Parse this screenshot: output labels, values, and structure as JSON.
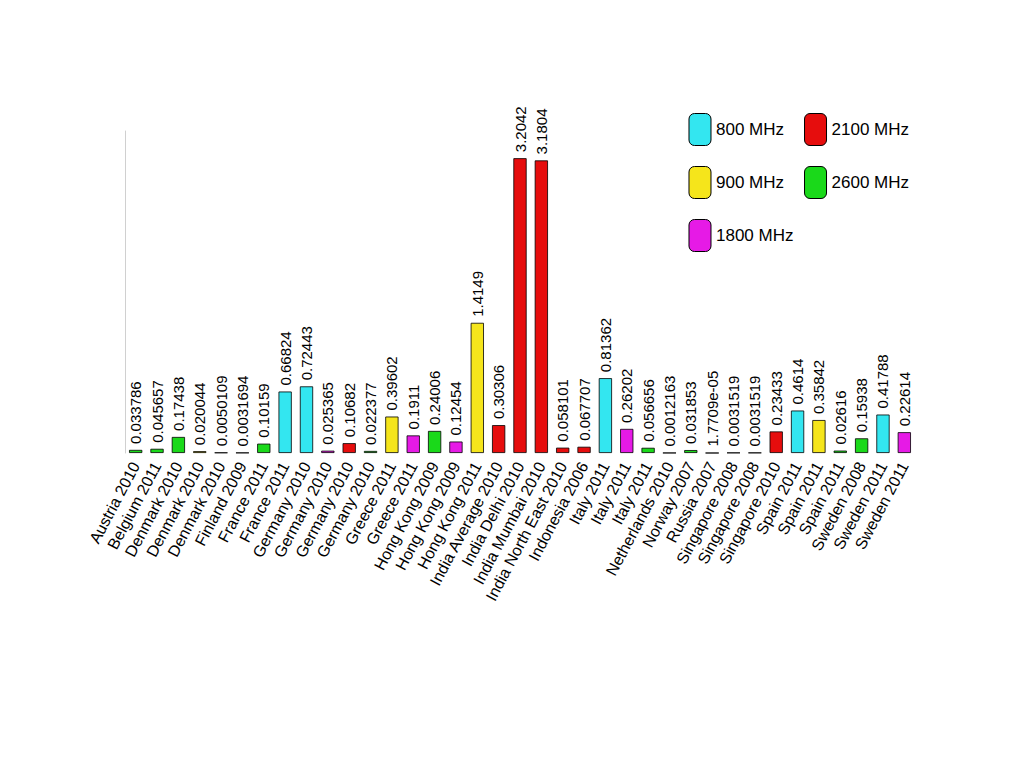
{
  "chart_data": {
    "type": "bar",
    "categories": [
      "Austria 2010",
      "Belgium 2011",
      "Denmark 2010",
      "Denmark 2010",
      "Denmark 2010",
      "Finland 2009",
      "France 2011",
      "France 2011",
      "Germany 2010",
      "Germany 2010",
      "Germany 2010",
      "Germany 2010",
      "Greece 2011",
      "Greece 2011",
      "Hong Kong 2009",
      "Hong Kong 2009",
      "Hong Kong 2011",
      "India Average 2010",
      "India Delhi 2010",
      "India Mumbai 2010",
      "India North East 2010",
      "Indonesia 2006",
      "Italy 2011",
      "Italy 2011",
      "Italy 2011",
      "Netherlands 2010",
      "Norway 2007",
      "Russia 2007",
      "Singapore 2008",
      "Singapore 2008",
      "Singapore 2010",
      "Spain 2011",
      "Spain 2011",
      "Spain 2011",
      "Sweden 2008",
      "Sweden 2011",
      "Sweden 2011"
    ],
    "series": [
      {
        "name": "800 MHz",
        "color": "#33e6f0",
        "values": [
          null,
          null,
          null,
          null,
          null,
          null,
          null,
          0.66824,
          0.72443,
          null,
          null,
          null,
          null,
          null,
          null,
          null,
          null,
          null,
          null,
          null,
          null,
          null,
          0.81362,
          null,
          null,
          null,
          null,
          null,
          null,
          null,
          null,
          0.4614,
          null,
          null,
          null,
          0.41788,
          null
        ]
      },
      {
        "name": "900 MHz",
        "color": "#f5e51b",
        "values": [
          null,
          null,
          null,
          0.020044,
          null,
          null,
          null,
          null,
          null,
          null,
          null,
          null,
          0.39602,
          null,
          null,
          null,
          1.4149,
          null,
          null,
          null,
          null,
          null,
          null,
          null,
          null,
          null,
          null,
          null,
          null,
          null,
          null,
          null,
          0.35842,
          null,
          null,
          null,
          null
        ]
      },
      {
        "name": "1800 MHz",
        "color": "#e61ae6",
        "values": [
          null,
          null,
          null,
          null,
          null,
          null,
          null,
          null,
          null,
          0.025365,
          null,
          null,
          null,
          0.1911,
          null,
          0.12454,
          null,
          null,
          null,
          null,
          null,
          null,
          null,
          0.26202,
          null,
          null,
          null,
          null,
          null,
          0.0031519,
          null,
          null,
          null,
          null,
          null,
          null,
          0.22614
        ]
      },
      {
        "name": "2100 MHz",
        "color": "#e60d0d",
        "values": [
          null,
          null,
          null,
          null,
          null,
          null,
          null,
          null,
          null,
          null,
          0.10682,
          null,
          null,
          null,
          null,
          null,
          null,
          0.30306,
          3.2042,
          3.1804,
          0.058101,
          0.067707,
          null,
          null,
          null,
          null,
          null,
          1.7709e-05,
          null,
          null,
          0.23433,
          null,
          null,
          null,
          null,
          null,
          null
        ],
        "value_labels": [
          null,
          null,
          null,
          null,
          null,
          null,
          null,
          null,
          null,
          null,
          "0.10682",
          null,
          null,
          null,
          null,
          null,
          null,
          "0.30306",
          "3.2042",
          "3.1804",
          "0.058101",
          "0.067707",
          null,
          null,
          null,
          null,
          null,
          "1.7709e-05",
          null,
          null,
          "0.23433",
          null,
          null,
          null,
          null,
          null,
          null
        ]
      },
      {
        "name": "2600 MHz",
        "color": "#1ad91a",
        "values": [
          0.033786,
          0.045657,
          0.17438,
          null,
          0.0050109,
          0.0031694,
          0.10159,
          null,
          null,
          null,
          null,
          0.022377,
          null,
          null,
          0.24006,
          null,
          null,
          null,
          null,
          null,
          null,
          null,
          null,
          null,
          0.056656,
          0.0012163,
          0.031853,
          null,
          0.0031519,
          null,
          null,
          null,
          null,
          0.02616,
          0.15938,
          null,
          null
        ]
      }
    ],
    "ylim": [
      0,
      3.5
    ],
    "tick_labels": "x",
    "data_labels": true,
    "legend": "upper right"
  }
}
